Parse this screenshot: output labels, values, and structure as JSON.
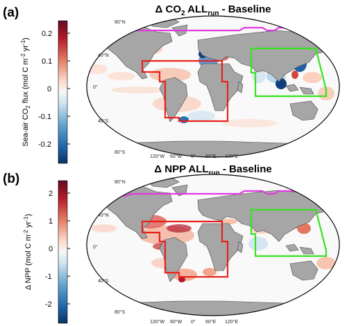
{
  "panels": [
    {
      "letter": "(a)",
      "title_prefix": "Δ CO",
      "title_sub": "2",
      "title_mid": " ALL",
      "title_sub2": "run",
      "title_suffix": " - Baseline",
      "colorbar": {
        "label_prefix": "Sea-air CO",
        "label_sub": "2",
        "label_suffix": " flux (mol C m",
        "label_sup1": "-2",
        "label_mid": " yr",
        "label_sup2": "-1",
        "label_end": ")",
        "ticks": [
          "0.2",
          "0.1",
          "0",
          "-0.1",
          "-0.2"
        ],
        "vmin": -0.25,
        "vmax": 0.25
      }
    },
    {
      "letter": "(b)",
      "title_prefix": "Δ NPP ALL",
      "title_sub": "run",
      "title_suffix": " - Baseline",
      "colorbar": {
        "label_prefix": "Δ NPP (mol C m",
        "label_sup1": "-2",
        "label_mid": " yr",
        "label_sup2": "-1",
        "label_end": ")",
        "ticks": [
          "2",
          "1",
          "0",
          "-1",
          "-2"
        ],
        "vmin": -2.5,
        "vmax": 2.5
      }
    }
  ],
  "map_labels": {
    "lat": [
      "80°N",
      "40°N",
      "0°",
      "40°S",
      "80°S"
    ],
    "lon": [
      "120°W",
      "60°W",
      "0°",
      "60°E",
      "120°E"
    ]
  },
  "colors": {
    "land": "#a6a6a6",
    "atlantic_box": "#e8211b",
    "asia_box": "#35e21f",
    "arctic_line": "#e03ae0",
    "cmap_pos": "#6b0a1f",
    "cmap_neg": "#0b3a78"
  }
}
